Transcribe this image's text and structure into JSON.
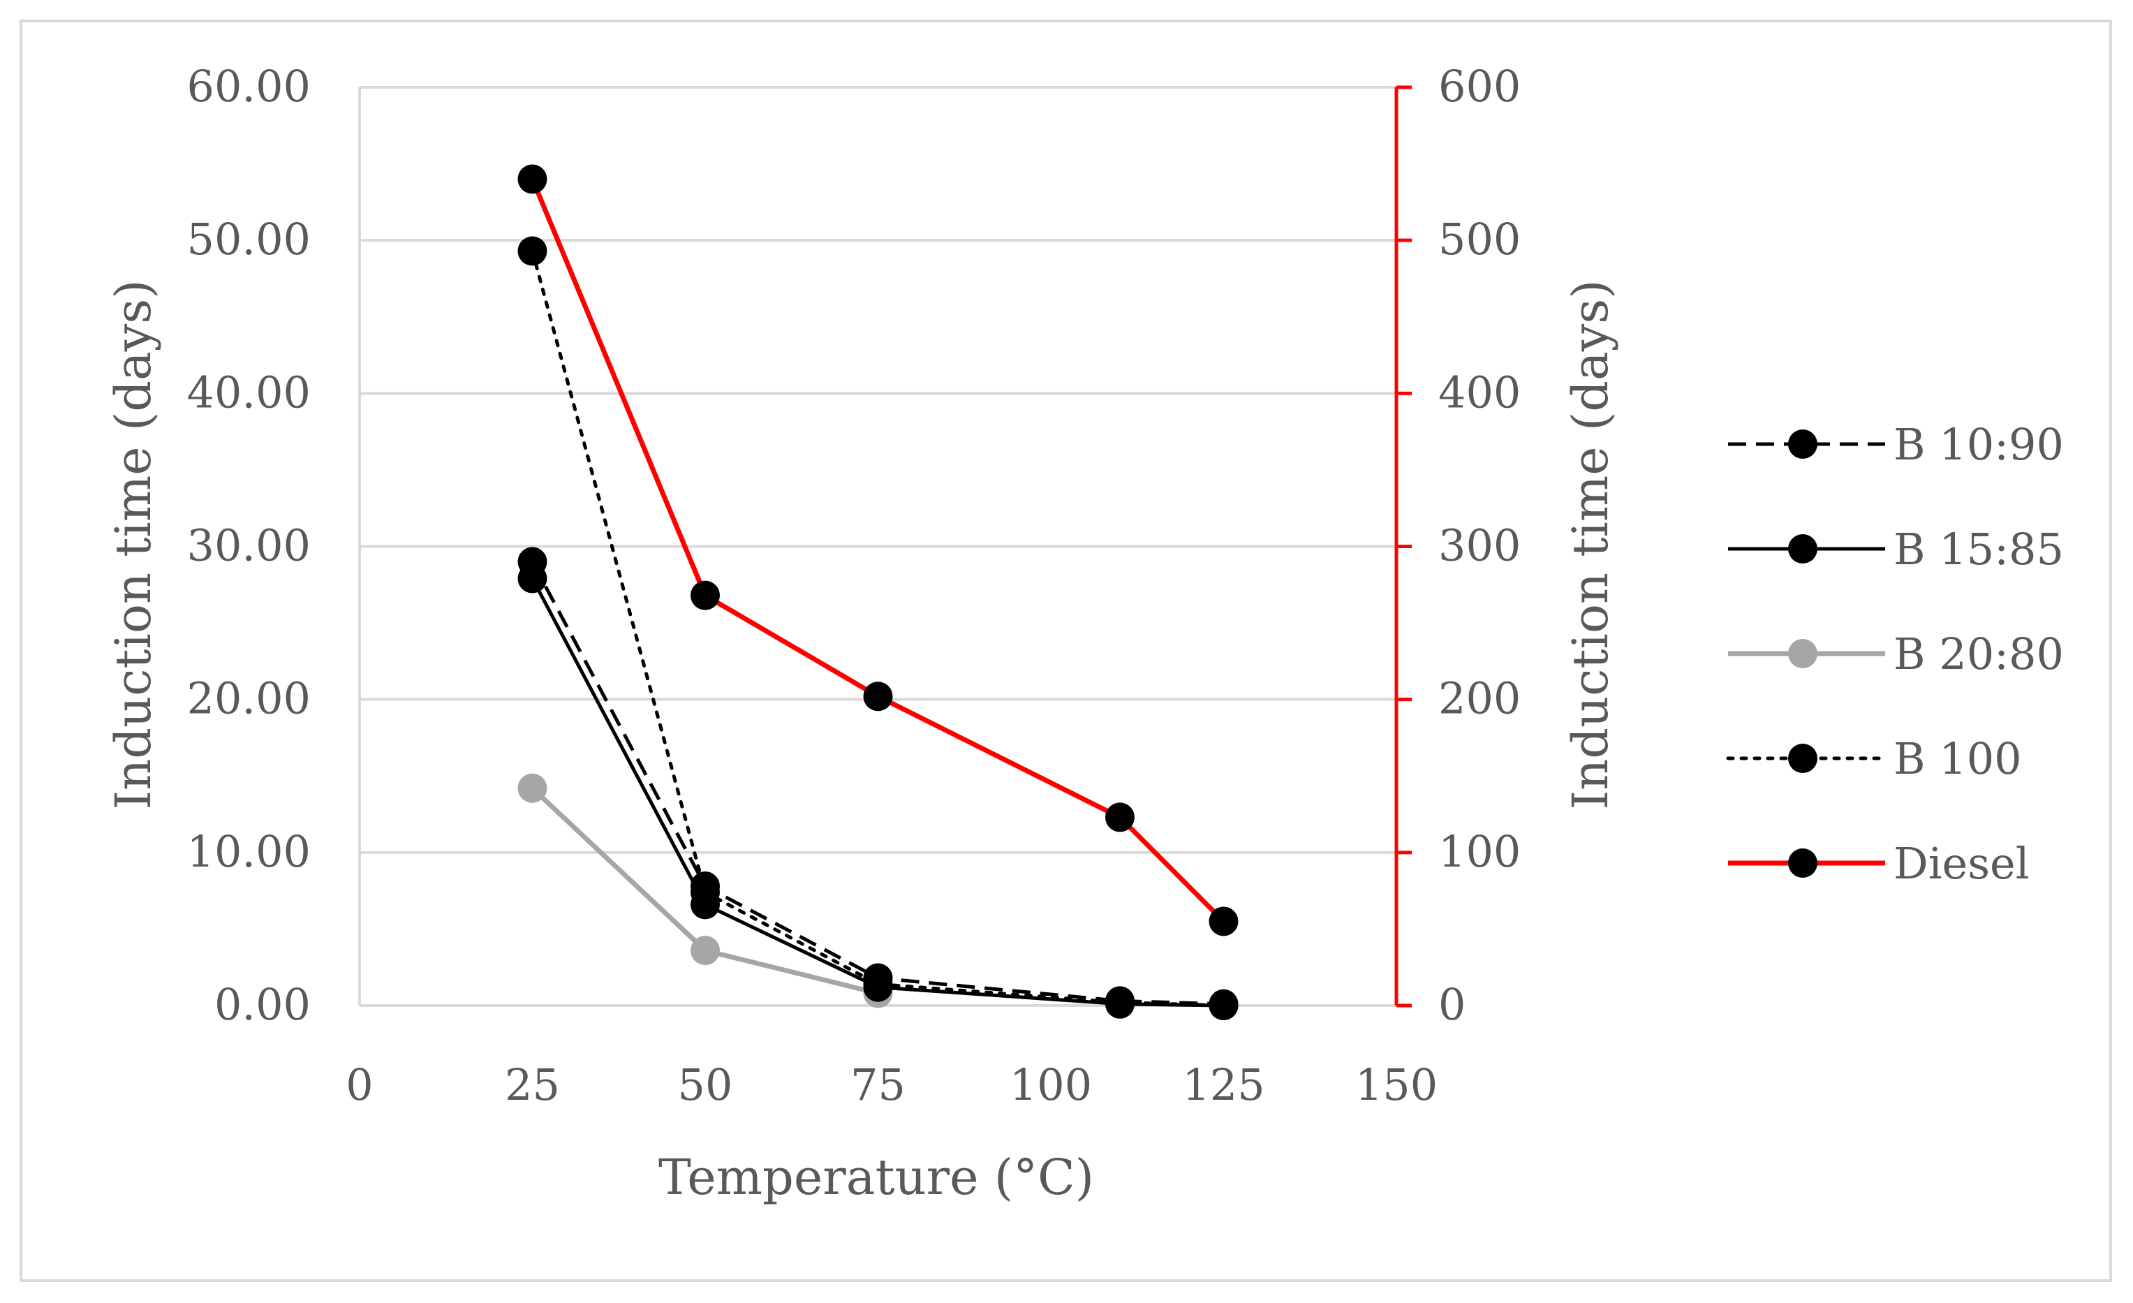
{
  "chart_data": {
    "type": "line",
    "title": "",
    "xlabel": "Temperature (°C)",
    "ylabel_left": "Induction time (days)",
    "ylabel_right": "Induction time (days)",
    "xlim": [
      0,
      150
    ],
    "ylim_left": [
      0,
      60
    ],
    "ylim_right": [
      0,
      600
    ],
    "x_ticks": [
      "0",
      "25",
      "50",
      "75",
      "100",
      "125",
      "150"
    ],
    "y_left_ticks": [
      "0.00",
      "10.00",
      "20.00",
      "30.00",
      "40.00",
      "50.00",
      "60.00"
    ],
    "y_right_ticks": [
      "0",
      "100",
      "200",
      "300",
      "400",
      "500",
      "600"
    ],
    "grid": true,
    "legend_position": "right",
    "colors": {
      "axis_right": "#ff0000",
      "grid": "#d9d9d9",
      "axis_left": "#d9d9d9",
      "text": "#595959"
    },
    "series": [
      {
        "name": "B 10:90",
        "axis": "left",
        "style": "dashed",
        "color": "#000000",
        "marker_color": "#000000",
        "x": [
          25,
          50,
          75,
          110,
          125
        ],
        "values": [
          29.0,
          7.8,
          1.8,
          0.3,
          0.1
        ]
      },
      {
        "name": "B 15:85",
        "axis": "left",
        "style": "solid",
        "color": "#000000",
        "marker_color": "#000000",
        "x": [
          25,
          50,
          75,
          110,
          125
        ],
        "values": [
          27.9,
          6.6,
          1.2,
          0.1,
          0.0
        ]
      },
      {
        "name": "B 20:80",
        "axis": "left",
        "style": "solid",
        "color": "#a6a6a6",
        "marker_color": "#a6a6a6",
        "x": [
          25,
          50,
          75
        ],
        "values": [
          14.2,
          3.6,
          0.8
        ]
      },
      {
        "name": "B 100",
        "axis": "left",
        "style": "dotted",
        "color": "#000000",
        "marker_color": "#000000",
        "x": [
          25,
          50,
          75,
          110,
          125
        ],
        "values": [
          49.3,
          7.4,
          1.4,
          0.2,
          0.0
        ]
      },
      {
        "name": "Diesel",
        "axis": "right",
        "style": "solid",
        "color": "#ff0000",
        "marker_color": "#000000",
        "x": [
          25,
          50,
          75,
          110,
          125
        ],
        "values": [
          540,
          268,
          202,
          123,
          55
        ]
      }
    ]
  }
}
